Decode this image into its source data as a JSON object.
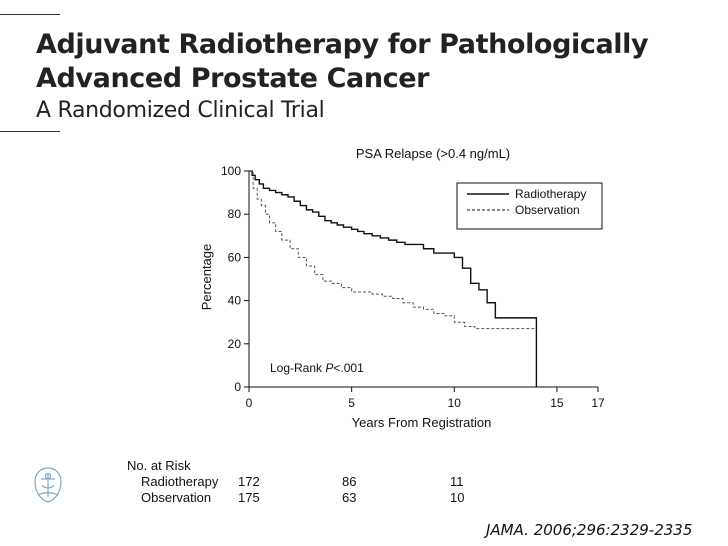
{
  "slide": {
    "title_line1": "Adjuvant Radiotherapy for Pathologically",
    "title_line2": "Advanced Prostate Cancer",
    "subtitle": "A Randomized Clinical Trial",
    "citation": "JAMA. 2006;296:2329-2335",
    "logo_icon": "journal-seal-icon"
  },
  "chart_data": {
    "type": "line",
    "title": "PSA Relapse (>0.4 ng/mL)",
    "xlabel": "Years From Registration",
    "ylabel": "Percentage",
    "xlim": [
      0,
      17
    ],
    "ylim": [
      0,
      100
    ],
    "xticks": [
      0,
      5,
      10,
      15,
      17
    ],
    "yticks": [
      0,
      20,
      40,
      60,
      80,
      100
    ],
    "grid": false,
    "legend": "top-right",
    "annotation": "Log-Rank P<.001",
    "series": [
      {
        "name": "Radiotherapy",
        "style": "solid",
        "x": [
          0,
          0.15,
          0.3,
          0.5,
          0.7,
          1.0,
          1.3,
          1.6,
          1.9,
          2.2,
          2.5,
          2.8,
          3.1,
          3.4,
          3.7,
          4.0,
          4.3,
          4.6,
          5.0,
          5.3,
          5.6,
          6.0,
          6.4,
          6.8,
          7.2,
          7.6,
          8.0,
          8.5,
          9.0,
          9.5,
          10.0,
          10.4,
          10.8,
          11.2,
          11.6,
          12.0,
          13.0,
          14.0
        ],
        "y": [
          100,
          98,
          96,
          94,
          92,
          91,
          90,
          89,
          88,
          86,
          84,
          82,
          81,
          79,
          77,
          76,
          75,
          74,
          73,
          72,
          71,
          70,
          69,
          68,
          67,
          66,
          66,
          64,
          62,
          62,
          60,
          55,
          48,
          45,
          39,
          32,
          32,
          0
        ]
      },
      {
        "name": "Observation",
        "style": "dashed",
        "x": [
          0,
          0.2,
          0.4,
          0.6,
          0.8,
          1.0,
          1.3,
          1.6,
          2.0,
          2.4,
          2.8,
          3.2,
          3.6,
          4.0,
          4.5,
          5.0,
          5.5,
          6.0,
          6.5,
          7.0,
          7.5,
          8.0,
          8.5,
          9.0,
          9.5,
          10.0,
          10.5,
          11.0,
          12.0,
          13.0,
          14.0
        ],
        "y": [
          100,
          92,
          87,
          84,
          80,
          76,
          72,
          68,
          64,
          60,
          56,
          52,
          49,
          48,
          46,
          44,
          44,
          43,
          42,
          41,
          39,
          37,
          36,
          34,
          33,
          30,
          28,
          27,
          27,
          27,
          27
        ]
      }
    ],
    "at_risk": {
      "header": "No. at Risk",
      "timepoints": [
        0,
        5,
        10
      ],
      "rows": [
        {
          "label": "Radiotherapy",
          "counts": [
            "172",
            "86",
            "11"
          ]
        },
        {
          "label": "Observation",
          "counts": [
            "175",
            "63",
            "10"
          ]
        }
      ]
    }
  }
}
